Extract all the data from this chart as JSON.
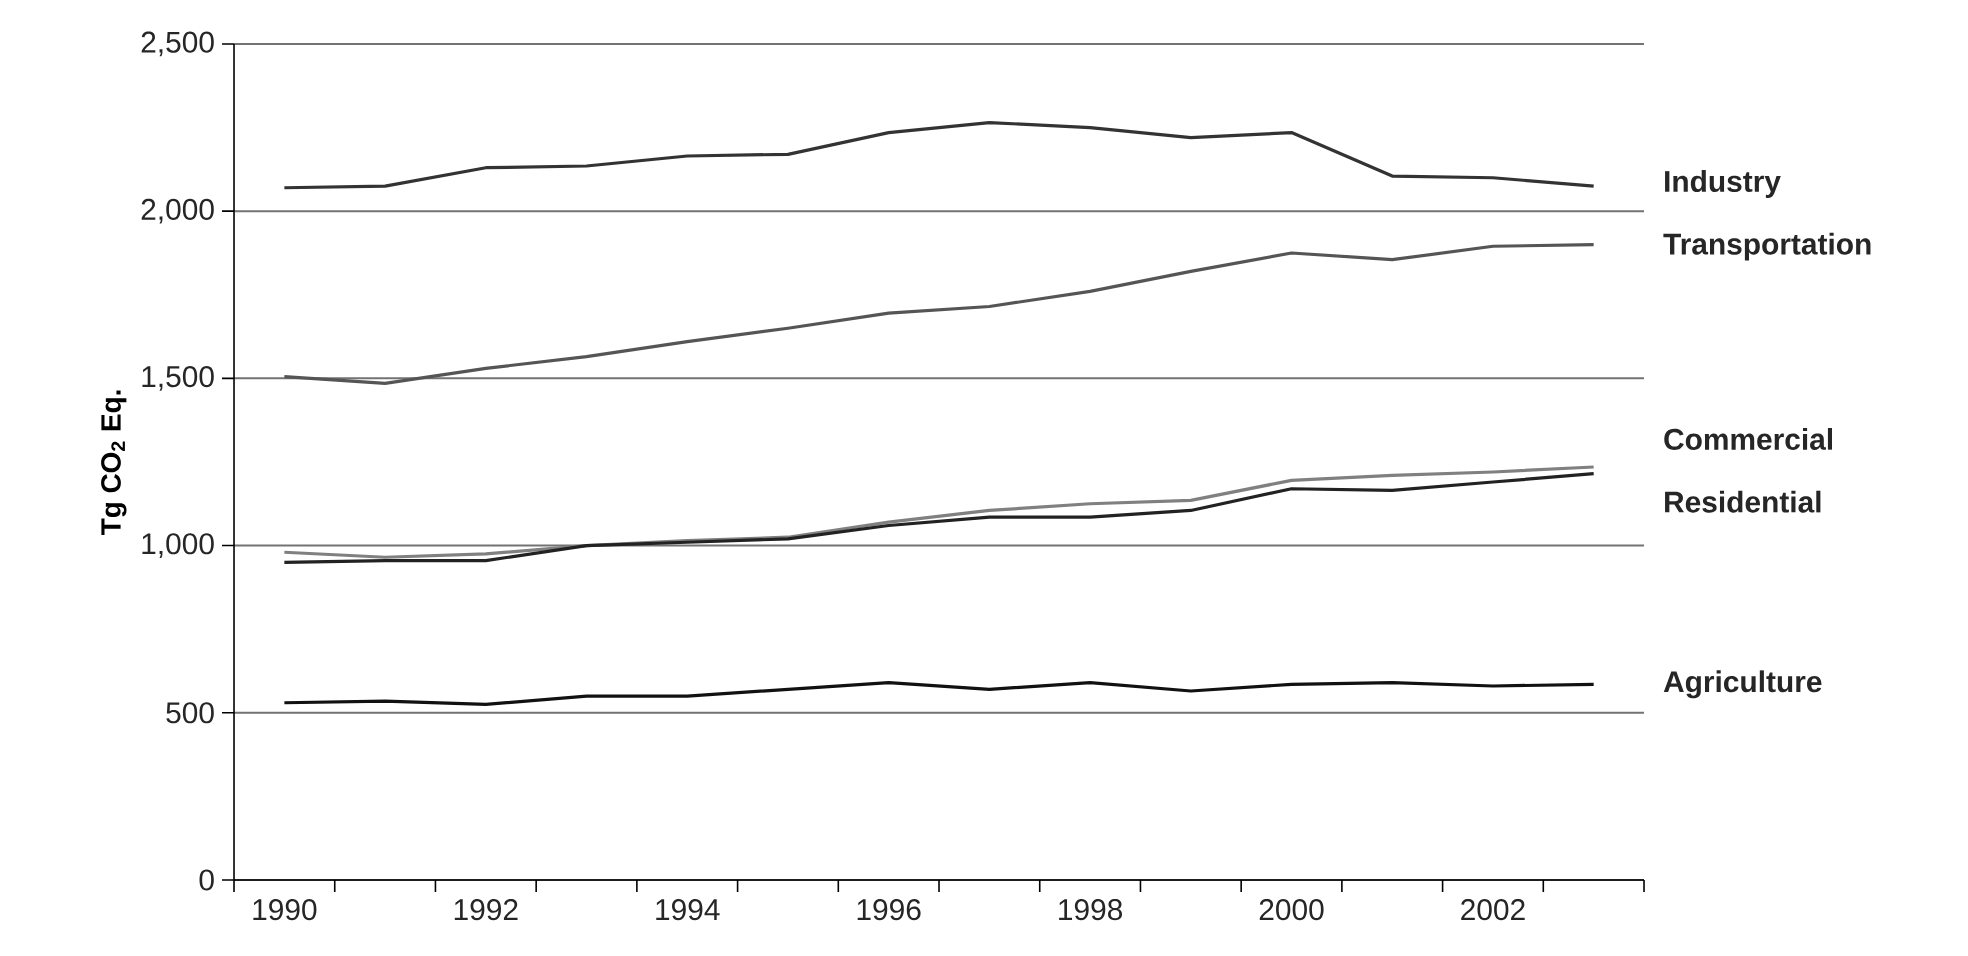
{
  "chart_data": {
    "type": "line",
    "ylabel": "Tg CO$_{2}$ Eq.",
    "categories": [
      "1990",
      null,
      "1992",
      null,
      "1994",
      null,
      "1996",
      null,
      "1998",
      null,
      "2000",
      null,
      "2002",
      null
    ],
    "series": [
      {
        "name": "Industry",
        "color": "#333333",
        "values": [
          2070,
          2075,
          2130,
          2135,
          2165,
          2170,
          2235,
          2265,
          2250,
          2220,
          2235,
          2105,
          2100,
          2075
        ]
      },
      {
        "name": "Transportation",
        "color": "#555555",
        "values": [
          1505,
          1485,
          1530,
          1565,
          1610,
          1650,
          1695,
          1715,
          1760,
          1820,
          1875,
          1855,
          1895,
          1900
        ]
      },
      {
        "name": "Commercial",
        "color": "#808080",
        "values": [
          980,
          965,
          975,
          1000,
          1015,
          1025,
          1070,
          1105,
          1125,
          1135,
          1195,
          1210,
          1220,
          1235
        ]
      },
      {
        "name": "Residential",
        "color": "#222222",
        "values": [
          950,
          955,
          955,
          1000,
          1010,
          1020,
          1060,
          1085,
          1085,
          1105,
          1170,
          1165,
          1190,
          1215
        ]
      },
      {
        "name": "Agriculture",
        "color": "#111111",
        "values": [
          530,
          535,
          525,
          550,
          550,
          570,
          590,
          570,
          590,
          565,
          585,
          590,
          580,
          585
        ]
      }
    ],
    "ylim": [
      0,
      2500
    ],
    "yticks": [
      0,
      500,
      {
        "value": 1000,
        "label": "1,000"
      },
      {
        "value": 1500,
        "label": "1,500"
      },
      {
        "value": 2000,
        "label": "2,000"
      },
      {
        "value": 2500,
        "label": "2,500"
      }
    ],
    "grid": "y",
    "legend": false,
    "marker": "none",
    "line_style": "solid"
  }
}
